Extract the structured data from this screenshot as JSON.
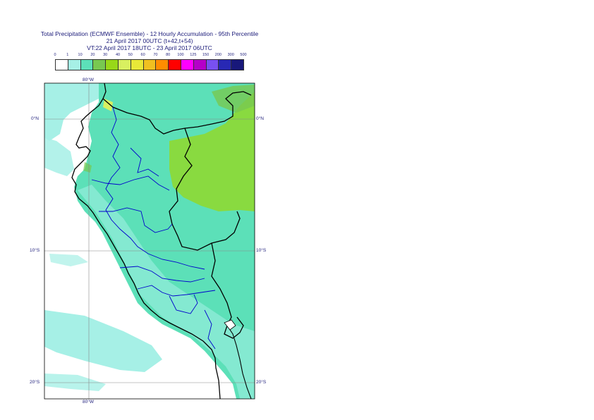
{
  "title": {
    "line1": "Total Precipitation (ECMWF Ensemble) - 12 Hourly Accumulation - 95th Percentile",
    "line2": "21 April 2017 00UTC (t+42,t+54)",
    "line3": "VT:22 April 2017 18UTC - 23 April 2017 06UTC"
  },
  "legend": {
    "thresholds": [
      "0",
      "1",
      "10",
      "20",
      "30",
      "40",
      "50",
      "60",
      "70",
      "80",
      "100",
      "125",
      "150",
      "200",
      "300",
      "500"
    ],
    "colors": [
      "#ffffff",
      "#a6f0e6",
      "#5ce0b8",
      "#78c850",
      "#98d818",
      "#d8f060",
      "#e8e838",
      "#f0c020",
      "#ff8c00",
      "#ff0000",
      "#ff00ff",
      "#b400c8",
      "#7850f0",
      "#2828b4",
      "#18187a"
    ]
  },
  "map": {
    "lon_labels": {
      "top": "80°W",
      "bottom": "80°W"
    },
    "lat_labels": {
      "0": "0°N",
      "10": "10°S",
      "20": "20°S"
    },
    "background_color": "#ffffff",
    "land_base_color": "#5ce0b8",
    "ocean_streak_color": "#a6f0e6",
    "wet_region_color": "#98d818",
    "coast_color": "#000000",
    "admin_color": "#0000cc"
  }
}
